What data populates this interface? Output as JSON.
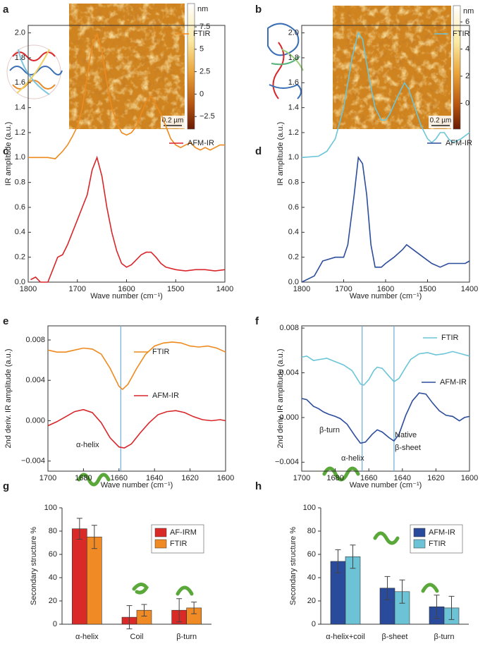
{
  "chart_data": [
    {
      "type": "afm_image",
      "panel": "a",
      "scale_bar": "0.2 µm",
      "colorbar": {
        "label": "nm",
        "lim": [
          -3.9,
          10.1
        ],
        "ticks": [
          7.5,
          5,
          2.5,
          0,
          {
            "value": -2.5,
            "label": "−2.5"
          }
        ]
      }
    },
    {
      "type": "afm_image",
      "panel": "b",
      "scale_bar": "0.2 µm",
      "colorbar": {
        "label": "nm",
        "lim": [
          -1.9,
          7.2
        ],
        "ticks": [
          6,
          4,
          2,
          0
        ]
      }
    },
    {
      "type": "line",
      "panel": "c",
      "xlabel": "Wave number (cm⁻¹)",
      "ylabel": "IR amplitude (a.u.)",
      "xlim": [
        1800,
        1400
      ],
      "ylim": [
        0,
        2.06
      ],
      "xticks": [
        1800,
        1700,
        1600,
        1500,
        1400
      ],
      "yticks": [
        {
          "value": 0,
          "label": "0.0"
        },
        0.2,
        0.4,
        0.6,
        0.8,
        {
          "value": 1,
          "label": "1.0"
        },
        1.2,
        1.4,
        1.6,
        1.8,
        {
          "value": 2,
          "label": "2.0"
        }
      ],
      "series": [
        {
          "name": "FTIR",
          "color": "#ee8a1e",
          "x": [
            1800,
            1760,
            1745,
            1730,
            1720,
            1710,
            1700,
            1690,
            1680,
            1670,
            1660,
            1650,
            1640,
            1630,
            1620,
            1610,
            1600,
            1590,
            1580,
            1570,
            1560,
            1550,
            1540,
            1530,
            1520,
            1510,
            1500,
            1490,
            1480,
            1470,
            1460,
            1450,
            1440,
            1430,
            1420,
            1410,
            1400
          ],
          "values": [
            1.0,
            1.0,
            0.99,
            1.05,
            1.1,
            1.17,
            1.25,
            1.4,
            1.65,
            1.9,
            1.99,
            1.85,
            1.6,
            1.4,
            1.28,
            1.2,
            1.18,
            1.2,
            1.25,
            1.35,
            1.45,
            1.49,
            1.42,
            1.35,
            1.25,
            1.15,
            1.1,
            1.08,
            1.1,
            1.12,
            1.08,
            1.06,
            1.08,
            1.06,
            1.08,
            1.1,
            1.1
          ]
        },
        {
          "name": "AFM-IR",
          "color": "#d9262a",
          "x": [
            1795,
            1785,
            1775,
            1760,
            1750,
            1740,
            1730,
            1720,
            1710,
            1700,
            1690,
            1680,
            1670,
            1660,
            1650,
            1640,
            1630,
            1620,
            1610,
            1600,
            1590,
            1580,
            1570,
            1560,
            1550,
            1540,
            1530,
            1520,
            1500,
            1480,
            1460,
            1440,
            1420,
            1400
          ],
          "values": [
            0.02,
            0.04,
            0.0,
            0.0,
            0.1,
            0.2,
            0.22,
            0.3,
            0.4,
            0.5,
            0.6,
            0.7,
            0.9,
            1.0,
            0.85,
            0.6,
            0.4,
            0.25,
            0.15,
            0.12,
            0.14,
            0.18,
            0.22,
            0.24,
            0.24,
            0.2,
            0.15,
            0.12,
            0.1,
            0.09,
            0.1,
            0.1,
            0.09,
            0.1
          ]
        }
      ]
    },
    {
      "type": "line",
      "panel": "d",
      "xlabel": "Wave number (cm⁻¹)",
      "ylabel": "IR amplitude (a.u.)",
      "xlim": [
        1800,
        1400
      ],
      "ylim": [
        0,
        2.06
      ],
      "xticks": [
        1800,
        1700,
        1600,
        1500,
        1400
      ],
      "yticks": [
        {
          "value": 0,
          "label": "0.0"
        },
        0.2,
        0.4,
        0.6,
        0.8,
        {
          "value": 1,
          "label": "1.0"
        },
        1.2,
        1.4,
        1.6,
        1.8,
        {
          "value": 2,
          "label": "2.0"
        }
      ],
      "series": [
        {
          "name": "FTIR",
          "color": "#6cc5d8",
          "x": [
            1800,
            1760,
            1740,
            1720,
            1700,
            1680,
            1665,
            1655,
            1640,
            1625,
            1610,
            1600,
            1590,
            1570,
            1555,
            1545,
            1530,
            1515,
            1500,
            1490,
            1480,
            1470,
            1460,
            1450,
            1440,
            1420,
            1400
          ],
          "values": [
            1.0,
            1.01,
            1.05,
            1.15,
            1.4,
            1.8,
            2.0,
            1.95,
            1.65,
            1.4,
            1.3,
            1.3,
            1.35,
            1.5,
            1.6,
            1.55,
            1.4,
            1.25,
            1.15,
            1.12,
            1.15,
            1.2,
            1.2,
            1.15,
            1.12,
            1.15,
            1.2
          ]
        },
        {
          "name": "AFM-IR",
          "color": "#2c4c9c",
          "x": [
            1800,
            1770,
            1750,
            1720,
            1700,
            1690,
            1675,
            1665,
            1655,
            1645,
            1635,
            1625,
            1610,
            1600,
            1580,
            1560,
            1550,
            1530,
            1510,
            1490,
            1470,
            1450,
            1430,
            1410,
            1400
          ],
          "values": [
            0.0,
            0.05,
            0.17,
            0.2,
            0.2,
            0.3,
            0.7,
            1.0,
            0.95,
            0.7,
            0.3,
            0.12,
            0.12,
            0.15,
            0.2,
            0.26,
            0.3,
            0.25,
            0.2,
            0.15,
            0.12,
            0.15,
            0.15,
            0.15,
            0.17
          ]
        }
      ]
    },
    {
      "type": "line",
      "panel": "e",
      "xlabel": "Wave number (cm⁻¹)",
      "ylabel": "2nd deriv. IR amplitude (a.u.)",
      "xlim": [
        1700,
        1600
      ],
      "ylim": [
        -0.005,
        0.0094
      ],
      "xticks": [
        1700,
        1680,
        1660,
        1640,
        1620,
        1600
      ],
      "yticks": [
        0.008,
        0.004,
        {
          "value": 0,
          "label": "0.000"
        },
        {
          "value": -0.004,
          "label": "−0.004"
        }
      ],
      "reference_lines": [
        1659
      ],
      "annotations": [
        "α-helix"
      ],
      "series": [
        {
          "name": "FTIR",
          "color": "#ee8a1e",
          "x": [
            1700,
            1695,
            1690,
            1685,
            1680,
            1675,
            1670,
            1665,
            1660,
            1658,
            1655,
            1650,
            1645,
            1640,
            1635,
            1630,
            1625,
            1620,
            1615,
            1610,
            1605,
            1600
          ],
          "values": [
            0.007,
            0.0068,
            0.0068,
            0.007,
            0.0072,
            0.0071,
            0.0066,
            0.0052,
            0.0034,
            0.0031,
            0.0036,
            0.0052,
            0.0066,
            0.0074,
            0.0077,
            0.0078,
            0.0077,
            0.0074,
            0.0073,
            0.0074,
            0.0072,
            0.0068
          ]
        },
        {
          "name": "AFM-IR",
          "color": "#d9262a",
          "x": [
            1700,
            1695,
            1690,
            1685,
            1680,
            1675,
            1670,
            1665,
            1660,
            1657,
            1653,
            1648,
            1643,
            1638,
            1633,
            1628,
            1623,
            1618,
            1613,
            1608,
            1603,
            1600
          ],
          "values": [
            -0.0005,
            -0.0001,
            0.0004,
            0.0009,
            0.0011,
            0.0008,
            -0.0002,
            -0.0017,
            -0.0026,
            -0.0027,
            -0.0023,
            -0.0012,
            -0.0002,
            0.0006,
            0.0009,
            0.001,
            0.0008,
            0.0004,
            0.0001,
            0.0,
            0.0001,
            0.0
          ]
        }
      ]
    },
    {
      "type": "line",
      "panel": "f",
      "xlabel": "Wave number (cm⁻¹)",
      "ylabel": "2nd deriv. IR amplitude (a.u.)",
      "xlim": [
        1700,
        1600
      ],
      "ylim": [
        -0.0048,
        0.0082
      ],
      "xticks": [
        1700,
        1680,
        1660,
        1640,
        1620,
        1600
      ],
      "yticks": [
        0.008,
        0.004,
        {
          "value": 0,
          "label": "0.000"
        },
        {
          "value": -0.004,
          "label": "−0.004"
        }
      ],
      "reference_lines": [
        1664,
        1645
      ],
      "annotations": [
        "β-turn",
        "α-helix",
        "Native",
        "β-sheet"
      ],
      "series": [
        {
          "name": "FTIR",
          "color": "#6cc5d8",
          "x": [
            1700,
            1697,
            1693,
            1689,
            1685,
            1680,
            1675,
            1670,
            1665,
            1663,
            1660,
            1657,
            1655,
            1652,
            1648,
            1645,
            1642,
            1638,
            1635,
            1630,
            1625,
            1620,
            1615,
            1610,
            1605,
            1600
          ],
          "values": [
            0.0054,
            0.0055,
            0.0051,
            0.0052,
            0.0053,
            0.005,
            0.0047,
            0.0042,
            0.003,
            0.0029,
            0.0034,
            0.0042,
            0.0045,
            0.0044,
            0.0037,
            0.0032,
            0.0035,
            0.0045,
            0.0052,
            0.0057,
            0.0058,
            0.0056,
            0.0057,
            0.0059,
            0.0057,
            0.0055
          ]
        },
        {
          "name": "AFM-IR",
          "color": "#2c4c9c",
          "x": [
            1700,
            1697,
            1693,
            1690,
            1687,
            1684,
            1680,
            1677,
            1673,
            1668,
            1665,
            1662,
            1658,
            1655,
            1652,
            1648,
            1645,
            1642,
            1638,
            1634,
            1630,
            1626,
            1622,
            1618,
            1614,
            1610,
            1606,
            1603,
            1600
          ],
          "values": [
            0.0017,
            0.0016,
            0.001,
            0.0008,
            0.0005,
            0.0003,
            0.0001,
            -0.0001,
            -0.0006,
            -0.0017,
            -0.0023,
            -0.0022,
            -0.0015,
            -0.0011,
            -0.0013,
            -0.0018,
            -0.0021,
            -0.0015,
            0.0002,
            0.0015,
            0.0022,
            0.0021,
            0.0013,
            0.0006,
            0.0002,
            0.0001,
            -0.0003,
            0.0,
            0.0001
          ]
        }
      ]
    },
    {
      "type": "bar",
      "panel": "g",
      "ylabel": "Secondary structure %",
      "ylim": [
        0,
        100
      ],
      "yticks": [
        0,
        20,
        40,
        60,
        80,
        100
      ],
      "categories": [
        "α-helix",
        "Coil",
        "β-turn"
      ],
      "series": [
        {
          "name": "AF-IRM",
          "color": "#d92a27",
          "values": [
            82,
            6,
            12
          ],
          "errors": [
            9,
            10,
            10
          ]
        },
        {
          "name": "FTIR",
          "color": "#f08a24",
          "values": [
            75,
            12,
            14
          ],
          "errors": [
            10,
            5,
            5
          ]
        }
      ]
    },
    {
      "type": "bar",
      "panel": "h",
      "ylabel": "Secondary structure %",
      "ylim": [
        0,
        100
      ],
      "yticks": [
        0,
        20,
        40,
        60,
        80,
        100
      ],
      "categories": [
        "α-helix+coil",
        "β-sheet",
        "β-turn"
      ],
      "series": [
        {
          "name": "AFM-IR",
          "color": "#2a4b9b",
          "values": [
            54,
            31,
            15
          ],
          "errors": [
            10,
            10,
            10
          ]
        },
        {
          "name": "FTIR",
          "color": "#6cc3d6",
          "values": [
            58,
            28,
            14
          ],
          "errors": [
            10,
            10,
            10
          ]
        }
      ]
    }
  ]
}
